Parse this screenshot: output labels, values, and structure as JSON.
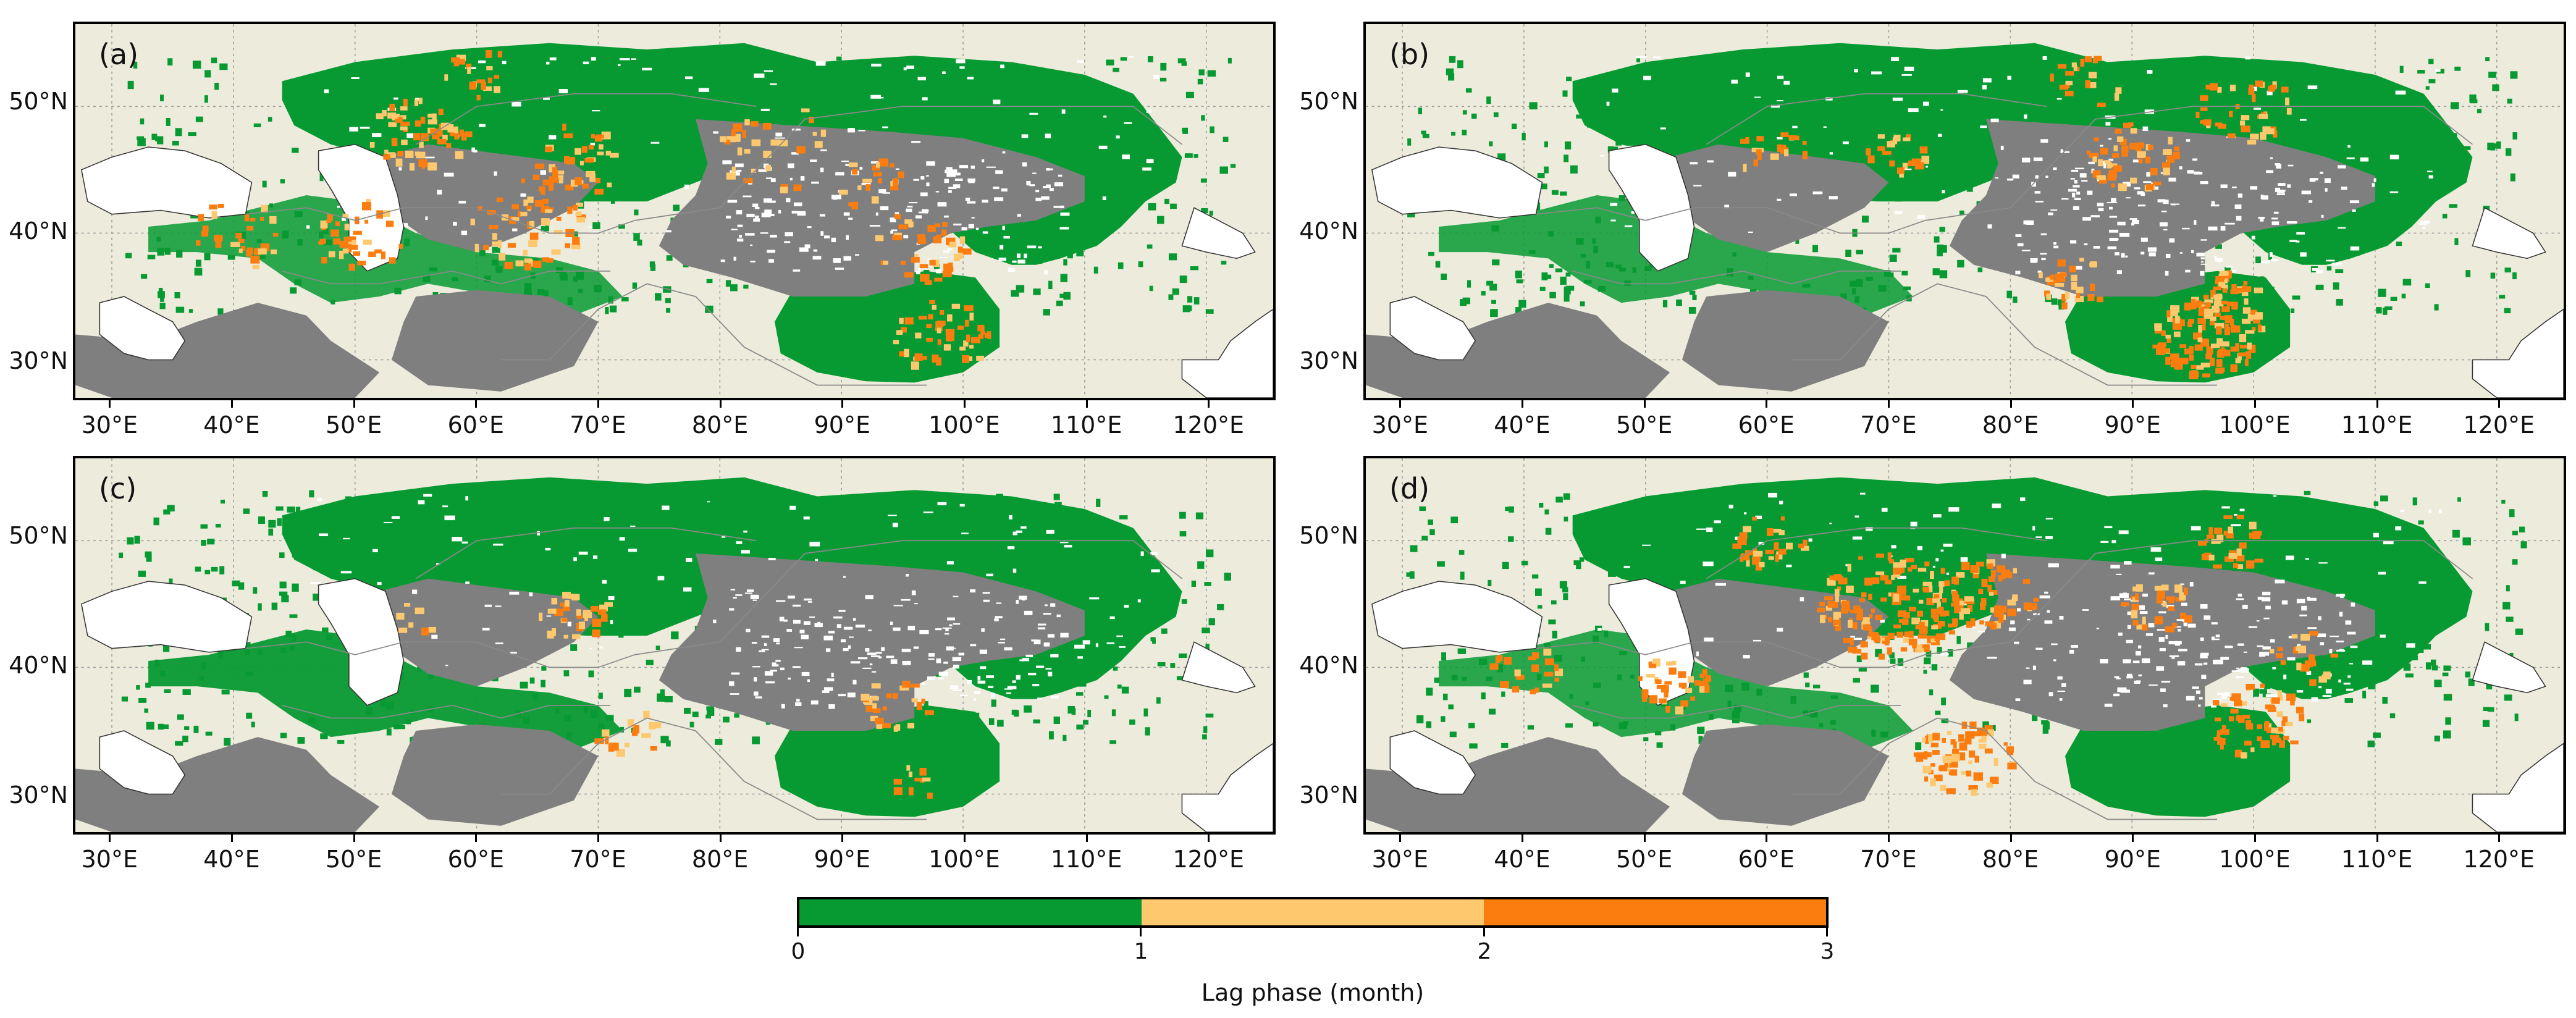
{
  "panels": [
    {
      "id": "a",
      "label": "(a)"
    },
    {
      "id": "b",
      "label": "(b)"
    },
    {
      "id": "c",
      "label": "(c)"
    },
    {
      "id": "d",
      "label": "(d)"
    }
  ],
  "lat_labels": [
    "50°N",
    "40°N",
    "30°N"
  ],
  "lon_labels": [
    "30°E",
    "40°E",
    "50°E",
    "60°E",
    "70°E",
    "80°E",
    "90°E",
    "100°E",
    "110°E",
    "120°E"
  ],
  "colorbar": {
    "title": "Lag phase (month)",
    "ticks": [
      "0",
      "1",
      "2",
      "3"
    ],
    "colors": [
      "#089a32",
      "#fec96e",
      "#fc7d0f"
    ]
  },
  "map_colors": {
    "land": "#ecebdc",
    "water": "#ffffff",
    "masked": "#7f7f7f",
    "lag_0_1": "#089a32",
    "lag_1_2": "#fec96e",
    "lag_2_3": "#fc7d0f"
  }
}
